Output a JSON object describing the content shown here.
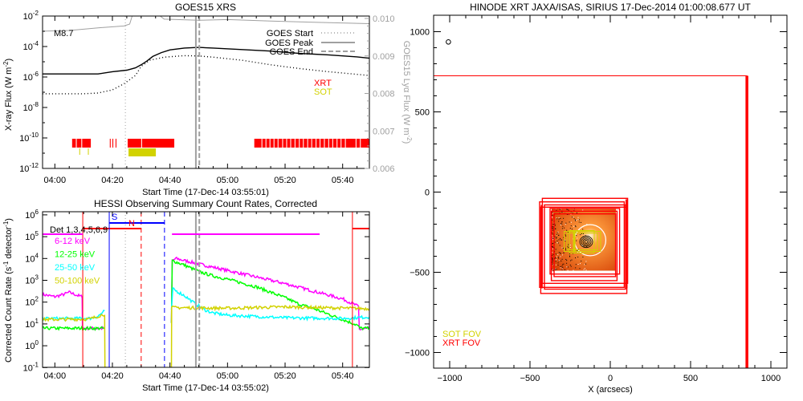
{
  "colors": {
    "red": "#ff0000",
    "yellow": "#d2d200",
    "magenta": "#ff00ff",
    "green": "#00ff00",
    "cyan": "#00ffff",
    "blue": "#0000ff",
    "gray": "#a0a0a0",
    "black": "#000000",
    "orange": "#ff7a1a"
  },
  "chart_data": [
    {
      "type": "line",
      "title": "GOES15 XRS",
      "xlabel": "Start Time (17-Dec-14 03:55:01)",
      "ylabel_parts": [
        {
          "t": "X-ray Flux (W m"
        },
        {
          "t": "-2",
          "sup": true
        },
        {
          "t": ")"
        }
      ],
      "y2label_parts": [
        {
          "t": "GOES15 Lyα Flux (W m"
        },
        {
          "t": "-2",
          "sup": true
        },
        {
          "t": ")"
        }
      ],
      "x_units": "minutes after 04:00",
      "xlim": [
        -4.3,
        109.3
      ],
      "x_ticks": [
        0,
        20,
        40,
        60,
        80,
        100
      ],
      "x_tick_labels": [
        "04:00",
        "04:20",
        "04:40",
        "05:00",
        "05:20",
        "05:40"
      ],
      "yscale": "log",
      "ylim_log10": [
        -12,
        -2
      ],
      "y_tick_base": "10",
      "y_tick_exponents": [
        "-2",
        "-4",
        "-6",
        "-8",
        "-10",
        "-12"
      ],
      "y2lim": [
        0.006,
        0.01
      ],
      "y2_tick_labels": [
        "0.010",
        "0.009",
        "0.008",
        "0.007",
        "0.006"
      ],
      "flare_class": "M8.7",
      "series": [
        {
          "name": "GOES long (1-8 Å)",
          "style": "solid",
          "color": "#000000",
          "points": [
            [
              -4.3,
              -5.8
            ],
            [
              15,
              -5.8
            ],
            [
              20,
              -5.65
            ],
            [
              25,
              -5.55
            ],
            [
              28,
              -5.4
            ],
            [
              30,
              -5.2
            ],
            [
              32,
              -4.95
            ],
            [
              34,
              -4.65
            ],
            [
              37,
              -4.4
            ],
            [
              40,
              -4.22
            ],
            [
              45,
              -4.1
            ],
            [
              50,
              -4.06
            ],
            [
              55,
              -4.1
            ],
            [
              65,
              -4.2
            ],
            [
              75,
              -4.3
            ],
            [
              85,
              -4.45
            ],
            [
              95,
              -4.55
            ],
            [
              105,
              -4.68
            ],
            [
              109.3,
              -4.77
            ]
          ]
        },
        {
          "name": "GOES short (0.5-4 Å)",
          "style": "dotted",
          "color": "#000000",
          "points": [
            [
              -4.3,
              -7.1
            ],
            [
              10,
              -7.1
            ],
            [
              15,
              -7.05
            ],
            [
              20,
              -6.85
            ],
            [
              24,
              -6.45
            ],
            [
              28,
              -5.9
            ],
            [
              30,
              -5.3
            ],
            [
              33,
              -4.9
            ],
            [
              38,
              -4.7
            ],
            [
              45,
              -4.6
            ],
            [
              50,
              -4.62
            ],
            [
              55,
              -4.7
            ],
            [
              65,
              -4.9
            ],
            [
              75,
              -5.2
            ],
            [
              85,
              -5.45
            ],
            [
              95,
              -5.65
            ],
            [
              109.3,
              -5.9
            ]
          ]
        },
        {
          "name": "GOES15 Lyα",
          "style": "solid",
          "color": "#a0a0a0",
          "axis": "y2",
          "points": [
            [
              -4.3,
              0.00966
            ],
            [
              5,
              0.00968
            ],
            [
              15,
              0.00975
            ],
            [
              24,
              0.0098
            ],
            [
              26,
              0.00985
            ],
            [
              27,
              0.0101
            ],
            [
              36,
              0.0101
            ],
            [
              38,
              0.00998
            ],
            [
              50,
              0.00995
            ],
            [
              60,
              0.00997
            ],
            [
              75,
              0.00993
            ],
            [
              90,
              0.0099
            ],
            [
              109.3,
              0.00986
            ]
          ]
        }
      ],
      "legend": [
        {
          "label": "GOES Start",
          "style": "dotted"
        },
        {
          "label": "GOES Peak",
          "style": "solid"
        },
        {
          "label": "GOES End",
          "style": "dashed"
        }
      ],
      "events": {
        "start": 24.5,
        "peak": 49.0,
        "end": 50.2
      },
      "coverage_labels": {
        "xrt": "XRT",
        "sot": "SOT"
      },
      "xrt_intervals": [
        [
          6.0,
          7.3
        ],
        [
          7.6,
          9.2
        ],
        [
          9.5,
          12.5
        ],
        [
          19.1,
          19.4
        ],
        [
          20.0,
          20.3
        ],
        [
          21.1,
          21.4
        ],
        [
          25.3,
          30.0
        ],
        [
          30.3,
          41.5
        ],
        [
          69.3,
          71.8
        ],
        [
          72.1,
          73.2
        ],
        [
          73.5,
          74.6
        ],
        [
          74.9,
          76.0
        ],
        [
          76.3,
          77.4
        ],
        [
          77.7,
          79.0
        ],
        [
          79.3,
          80.4
        ],
        [
          80.7,
          81.8
        ],
        [
          82.1,
          83.3
        ],
        [
          83.6,
          84.8
        ],
        [
          85.1,
          86.2
        ],
        [
          86.5,
          87.7
        ],
        [
          88.0,
          89.1
        ],
        [
          89.4,
          90.6
        ],
        [
          90.9,
          92.0
        ],
        [
          92.3,
          93.5
        ],
        [
          93.8,
          95.0
        ],
        [
          95.3,
          96.4
        ],
        [
          96.7,
          97.9
        ],
        [
          98.2,
          99.3
        ],
        [
          99.6,
          100.8
        ],
        [
          101.1,
          104.5
        ],
        [
          104.8,
          106.0
        ],
        [
          106.3,
          109.3
        ]
      ],
      "sot_intervals": [
        [
          8.5,
          8.8
        ],
        [
          11.5,
          11.8
        ],
        [
          25.6,
          35.1
        ]
      ]
    },
    {
      "type": "line",
      "title": "HESSI Observing Summary Count Rates, Corrected",
      "xlabel": "Start Time (17-Dec-14 03:55:02)",
      "ylabel_parts": [
        {
          "t": "Corrected Count Rate (s"
        },
        {
          "t": "-1",
          "sup": true
        },
        {
          "t": " detector"
        },
        {
          "t": "-1",
          "sup": true
        },
        {
          "t": ")"
        }
      ],
      "x_units": "minutes after 04:00",
      "xlim": [
        -4.3,
        109.3
      ],
      "x_ticks": [
        0,
        20,
        40,
        60,
        80,
        100
      ],
      "x_tick_labels": [
        "04:00",
        "04:20",
        "04:40",
        "05:00",
        "05:20",
        "05:40"
      ],
      "yscale": "log",
      "ylim_log10": [
        -1,
        6
      ],
      "y_tick_base": "10",
      "y_tick_exponents": [
        "6",
        "5",
        "4",
        "3",
        "2",
        "1",
        "0",
        "-1"
      ],
      "detectors_label": "Det 1,3,4,5,6,9",
      "night_label": "N",
      "saa_label": "S",
      "series": [
        {
          "name": "6-12 keV",
          "color": "#ff00ff",
          "segments": [
            [
              [
                -4.3,
                2.35
              ],
              [
                0,
                2.25
              ],
              [
                3,
                2.35
              ],
              [
                5,
                2.45
              ],
              [
                8,
                2.3
              ],
              [
                9.5,
                2.25
              ],
              [
                9.6,
                0.8
              ],
              [
                17.3,
                0.8
              ]
            ],
            [
              [
                40.5,
                1.0
              ],
              [
                40.8,
                3.9
              ],
              [
                42,
                4.0
              ],
              [
                50,
                3.75
              ],
              [
                60,
                3.45
              ],
              [
                70,
                3.15
              ],
              [
                80,
                2.85
              ],
              [
                90,
                2.5
              ],
              [
                100,
                2.15
              ],
              [
                105.5,
                1.8
              ],
              [
                105.8,
                0.75
              ],
              [
                109.3,
                0.8
              ]
            ]
          ]
        },
        {
          "name": "12-25 keV",
          "color": "#00ff00",
          "segments": [
            [
              [
                -4.3,
                0.8
              ],
              [
                17.3,
                0.8
              ]
            ],
            [
              [
                40.5,
                1.0
              ],
              [
                40.8,
                3.9
              ],
              [
                45,
                3.7
              ],
              [
                50,
                3.4
              ],
              [
                55,
                3.2
              ],
              [
                60,
                3.05
              ],
              [
                70,
                2.7
              ],
              [
                80,
                2.2
              ],
              [
                85,
                1.9
              ],
              [
                90,
                1.7
              ],
              [
                95,
                1.45
              ],
              [
                100,
                1.2
              ],
              [
                105,
                0.95
              ],
              [
                106,
                0.8
              ],
              [
                109.3,
                0.8
              ]
            ]
          ]
        },
        {
          "name": "25-50 keV",
          "color": "#00ffff",
          "segments": [
            [
              [
                -4.3,
                1.25
              ],
              [
                12,
                1.25
              ],
              [
                15,
                1.35
              ],
              [
                17.3,
                1.6
              ]
            ],
            [
              [
                40.5,
                1.6
              ],
              [
                41,
                2.6
              ],
              [
                45,
                2.3
              ],
              [
                48,
                2.0
              ],
              [
                52,
                1.65
              ],
              [
                55,
                1.5
              ],
              [
                60,
                1.4
              ],
              [
                80,
                1.28
              ],
              [
                100,
                1.25
              ],
              [
                109.3,
                1.32
              ]
            ]
          ]
        },
        {
          "name": "50-100 keV",
          "color": "#d2d200",
          "segments": [
            [
              [
                -4.3,
                1.2
              ],
              [
                12,
                1.22
              ],
              [
                17.3,
                1.45
              ],
              [
                17.4,
                -1
              ],
              [
                40.5,
                -1
              ],
              [
                40.6,
                1.75
              ],
              [
                60,
                1.72
              ],
              [
                80,
                1.78
              ],
              [
                109.3,
                1.7
              ]
            ]
          ]
        }
      ],
      "night_intervals": [
        [
          9.7,
          30.0
        ],
        [
          103.4,
          109.3
        ]
      ],
      "saa_intervals": [
        [
          18.9,
          38.1
        ]
      ],
      "flag_intervals": [
        [
          -4.3,
          9.7
        ],
        [
          40.7,
          92.0
        ]
      ],
      "events": {
        "start": 24.5,
        "peak": 49.0,
        "end": 50.2
      }
    },
    {
      "type": "scatter",
      "title": "HINODE XRT JAXA/ISAS, SIRIUS 17-Dec-2014 01:00:08.677 UT",
      "xlabel": "X (arcsecs)",
      "xlim": [
        -1100,
        1100
      ],
      "ylim": [
        -1100,
        1100
      ],
      "x_ticks": [
        -1000,
        -500,
        0,
        500,
        1000
      ],
      "x_tick_labels": [
        "−1000",
        "−500",
        "0",
        "500",
        "1000"
      ],
      "y_tick_labels": [
        "1000",
        "500",
        "0",
        "−500",
        "−1000"
      ],
      "legend": [
        {
          "label": "SOT FOV",
          "color": "#d2d200"
        },
        {
          "label": "XRT FOV",
          "color": "#ff0000"
        }
      ],
      "xrt_fov_boxes": [
        [
          -1300,
          -1300,
          850,
          725
        ],
        [
          -423,
          -569,
          108,
          -39
        ],
        [
          -440,
          -594,
          87,
          -61
        ],
        [
          -433,
          -632,
          103,
          -94
        ],
        [
          -375,
          -511,
          58,
          -102
        ],
        [
          -367,
          -552,
          42,
          -119
        ],
        [
          -350,
          -527,
          33,
          -136
        ],
        [
          -410,
          -605,
          95,
          -80
        ]
      ],
      "sot_fov_boxes": [
        [
          -287,
          -370,
          -60,
          -245
        ],
        [
          -270,
          -360,
          -80,
          -255
        ],
        [
          -255,
          -380,
          -100,
          -240
        ]
      ],
      "image_extent": [
        -365,
        -490,
        35,
        -100
      ],
      "flare_circle": {
        "x": -125,
        "y": -300,
        "r": 97
      },
      "marker": {
        "x": -1008,
        "y": 936
      }
    }
  ]
}
